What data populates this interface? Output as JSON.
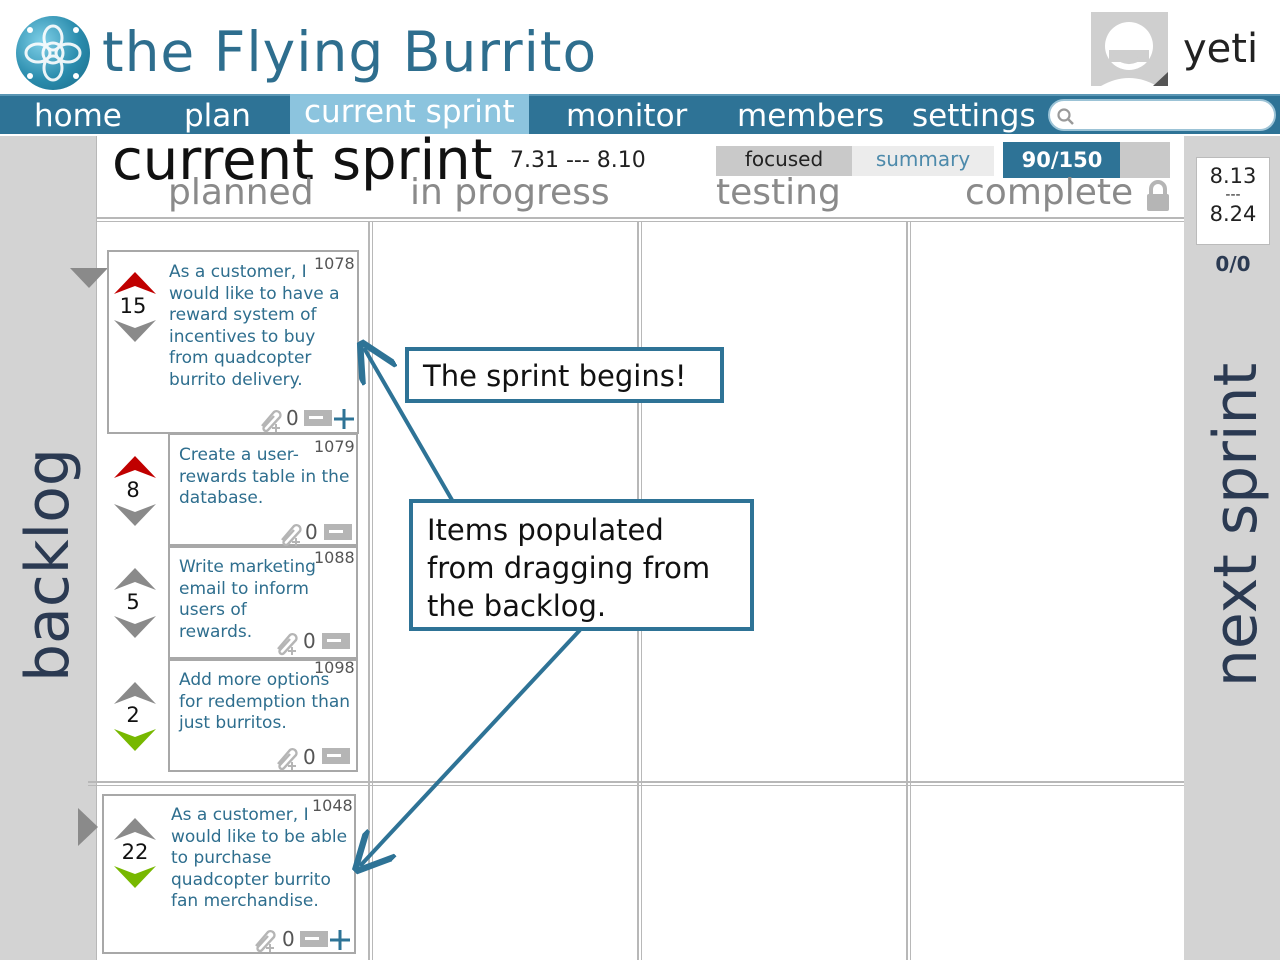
{
  "app": {
    "title": "the Flying Burrito",
    "username": "yeti",
    "colors": {
      "brand": "#2e7396",
      "nav_active": "#8cc4de",
      "priority_up": "#c00000",
      "priority_down_green": "#77b800",
      "neutral_arrow": "#8a8a8a",
      "callout_border": "#2e7396"
    }
  },
  "nav": {
    "items": [
      {
        "label": "home"
      },
      {
        "label": "plan"
      },
      {
        "label": "current sprint",
        "active": true
      },
      {
        "label": "monitor"
      },
      {
        "label": "members"
      },
      {
        "label": "settings"
      }
    ],
    "search_icon": "search-icon"
  },
  "sprint": {
    "title": "current sprint",
    "dates": "7.31 --- 8.10",
    "view_toggle": {
      "focused": "focused",
      "summary": "summary",
      "selected": "focused"
    },
    "capacity": {
      "label": "90/150",
      "used": 90,
      "total": 150
    },
    "columns": [
      "planned",
      "in progress",
      "testing",
      "complete"
    ],
    "lock_icon": "lock-icon"
  },
  "sidebars": {
    "backlog_label": "backlog",
    "next_sprint_label": "next sprint",
    "next_sprint_dates": {
      "start": "8.13",
      "sep": "---",
      "end": "8.24"
    },
    "next_sprint_count": "0/0"
  },
  "stories": [
    {
      "id": "1078",
      "points": "15",
      "text": "As a customer, I would like to have a reward system of incentives to buy from quadcopter burrito delivery.",
      "attachments": "0",
      "up": "red",
      "down": "gray"
    },
    {
      "id": "1079",
      "points": "8",
      "text": "Create a user-rewards table in the database.",
      "attachments": "0",
      "up": "red",
      "down": "gray"
    },
    {
      "id": "1088",
      "points": "5",
      "text": "Write marketing email to inform users of rewards.",
      "attachments": "0",
      "up": "gray",
      "down": "gray"
    },
    {
      "id": "1098",
      "points": "2",
      "text": "Add more options for redemption than just burritos.",
      "attachments": "0",
      "up": "gray",
      "down": "green"
    },
    {
      "id": "1048",
      "points": "22",
      "text": "As a customer, I would like to be able to purchase quadcopter burrito fan merchandise.",
      "attachments": "0",
      "up": "gray",
      "down": "green"
    }
  ],
  "annotations": {
    "sprint_begins": "The sprint begins!",
    "items_populated": "Items populated from dragging from the backlog."
  }
}
